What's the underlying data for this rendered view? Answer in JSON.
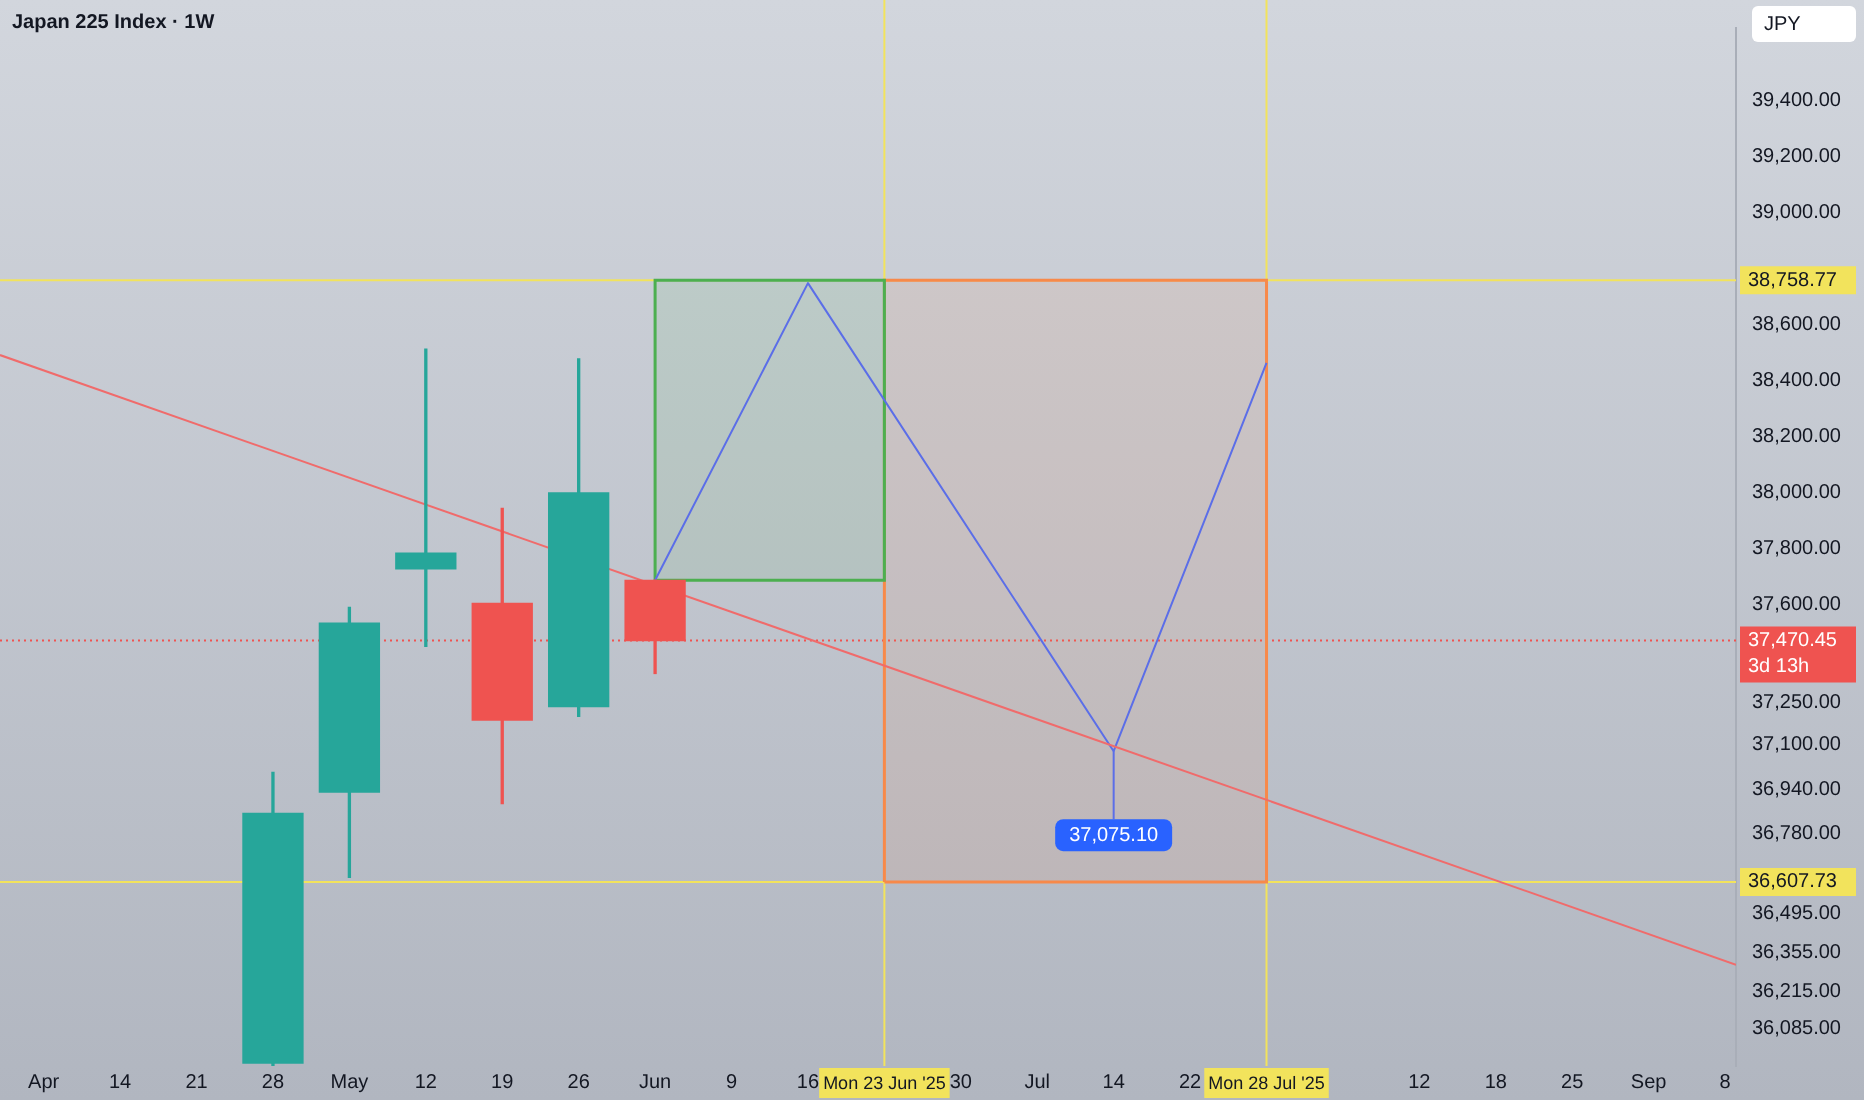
{
  "chart_data": {
    "type": "candlestick",
    "title": "Japan 225 Index · 1W",
    "xlim": [
      "2025-04-03",
      "2025-09-09"
    ],
    "ylim": [
      35950,
      39660
    ],
    "xticks": [
      {
        "value": "2025-04-07",
        "label": "Apr"
      },
      {
        "value": "2025-04-14",
        "label": "14"
      },
      {
        "value": "2025-04-21",
        "label": "21"
      },
      {
        "value": "2025-04-28",
        "label": "28"
      },
      {
        "value": "2025-05-05",
        "label": "May"
      },
      {
        "value": "2025-05-12",
        "label": "12"
      },
      {
        "value": "2025-05-19",
        "label": "19"
      },
      {
        "value": "2025-05-26",
        "label": "26"
      },
      {
        "value": "2025-06-02",
        "label": "Jun"
      },
      {
        "value": "2025-06-09",
        "label": "9"
      },
      {
        "value": "2025-06-16",
        "label": "16"
      },
      {
        "value": "2025-06-30",
        "label": "30"
      },
      {
        "value": "2025-07-07",
        "label": "Jul"
      },
      {
        "value": "2025-07-14",
        "label": "14"
      },
      {
        "value": "2025-07-21",
        "label": "22"
      },
      {
        "value": "2025-08-11",
        "label": "12"
      },
      {
        "value": "2025-08-18",
        "label": "18"
      },
      {
        "value": "2025-08-25",
        "label": "25"
      },
      {
        "value": "2025-09-01",
        "label": "Sep"
      },
      {
        "value": "2025-09-08",
        "label": "8"
      }
    ],
    "yticks": [
      {
        "value": 39400,
        "label": "39,400.00"
      },
      {
        "value": 39200,
        "label": "39,200.00"
      },
      {
        "value": 39000,
        "label": "39,000.00"
      },
      {
        "value": 38600,
        "label": "38,600.00"
      },
      {
        "value": 38400,
        "label": "38,400.00"
      },
      {
        "value": 38200,
        "label": "38,200.00"
      },
      {
        "value": 38000,
        "label": "38,000.00"
      },
      {
        "value": 37800,
        "label": "37,800.00"
      },
      {
        "value": 37600,
        "label": "37,600.00"
      },
      {
        "value": 37250,
        "label": "37,250.00"
      },
      {
        "value": 37100,
        "label": "37,100.00"
      },
      {
        "value": 36940,
        "label": "36,940.00"
      },
      {
        "value": 36780,
        "label": "36,780.00"
      },
      {
        "value": 36495,
        "label": "36,495.00"
      },
      {
        "value": 36355,
        "label": "36,355.00"
      },
      {
        "value": 36215,
        "label": "36,215.00"
      },
      {
        "value": 36085,
        "label": "36,085.00"
      }
    ],
    "series": [
      {
        "x": [
          "2025-04-28",
          "2025-05-05",
          "2025-05-12",
          "2025-05-19",
          "2025-05-26",
          "2025-06-02"
        ],
        "ohlc": [
          [
            35960,
            36999,
            35950,
            36853
          ],
          [
            36929,
            37589,
            36624,
            37533
          ],
          [
            37727,
            38512,
            37450,
            37783
          ],
          [
            37603,
            37943,
            36888,
            37186
          ],
          [
            37235,
            38477,
            37200,
            37998
          ],
          [
            37686,
            37686,
            37353,
            37470.45
          ]
        ],
        "colors": [
          "#26a69a",
          "#26a69a",
          "#26a69a",
          "#ef5350",
          "#26a69a",
          "#ef5350"
        ]
      },
      {
        "type": "line",
        "color": "#f06b6b",
        "x": [
          "2025-04-03",
          "2025-09-09"
        ],
        "values": [
          38491,
          36312
        ]
      },
      {
        "type": "line",
        "color": "#5b6ee8",
        "x": [
          "2025-06-02",
          "2025-06-16",
          "2025-07-14",
          "2025-07-28"
        ],
        "values": [
          37686,
          38748,
          37075.1,
          38463
        ]
      },
      {
        "type": "area",
        "color": "#4caf50",
        "x": [
          "2025-06-02",
          "2025-06-02",
          "2025-06-23",
          "2025-06-23",
          "2025-06-02"
        ],
        "values": [
          37686,
          38758.77,
          38758.77,
          37686,
          37686
        ]
      },
      {
        "type": "area",
        "color": "#f7894a",
        "x": [
          "2025-06-23",
          "2025-06-23",
          "2025-07-28",
          "2025-07-28",
          "2025-06-23"
        ],
        "values": [
          36607.73,
          38758.77,
          38758.77,
          36607.73,
          36607.73
        ]
      }
    ],
    "ref_lines": [
      {
        "axis": "y",
        "value": 38758.77,
        "label": "38,758.77",
        "color": "#f2e35c"
      },
      {
        "axis": "y",
        "value": 36607.73,
        "label": "36,607.73",
        "color": "#f2e35c"
      },
      {
        "axis": "y",
        "value": 37470.45,
        "label": "37,470.45\n3d 13h",
        "color": "#ef5350",
        "line_style": "dotted"
      },
      {
        "axis": "x",
        "value": "2025-06-23",
        "label": "Mon 23 Jun '25",
        "color": "#f2e35c"
      },
      {
        "axis": "x",
        "value": "2025-07-28",
        "label": "Mon 28 Jul '25",
        "color": "#f2e35c"
      }
    ],
    "annotations": [
      "JPY",
      {
        "text": "37,075.10",
        "x": "2025-07-14",
        "y": 37075.1
      }
    ]
  }
}
